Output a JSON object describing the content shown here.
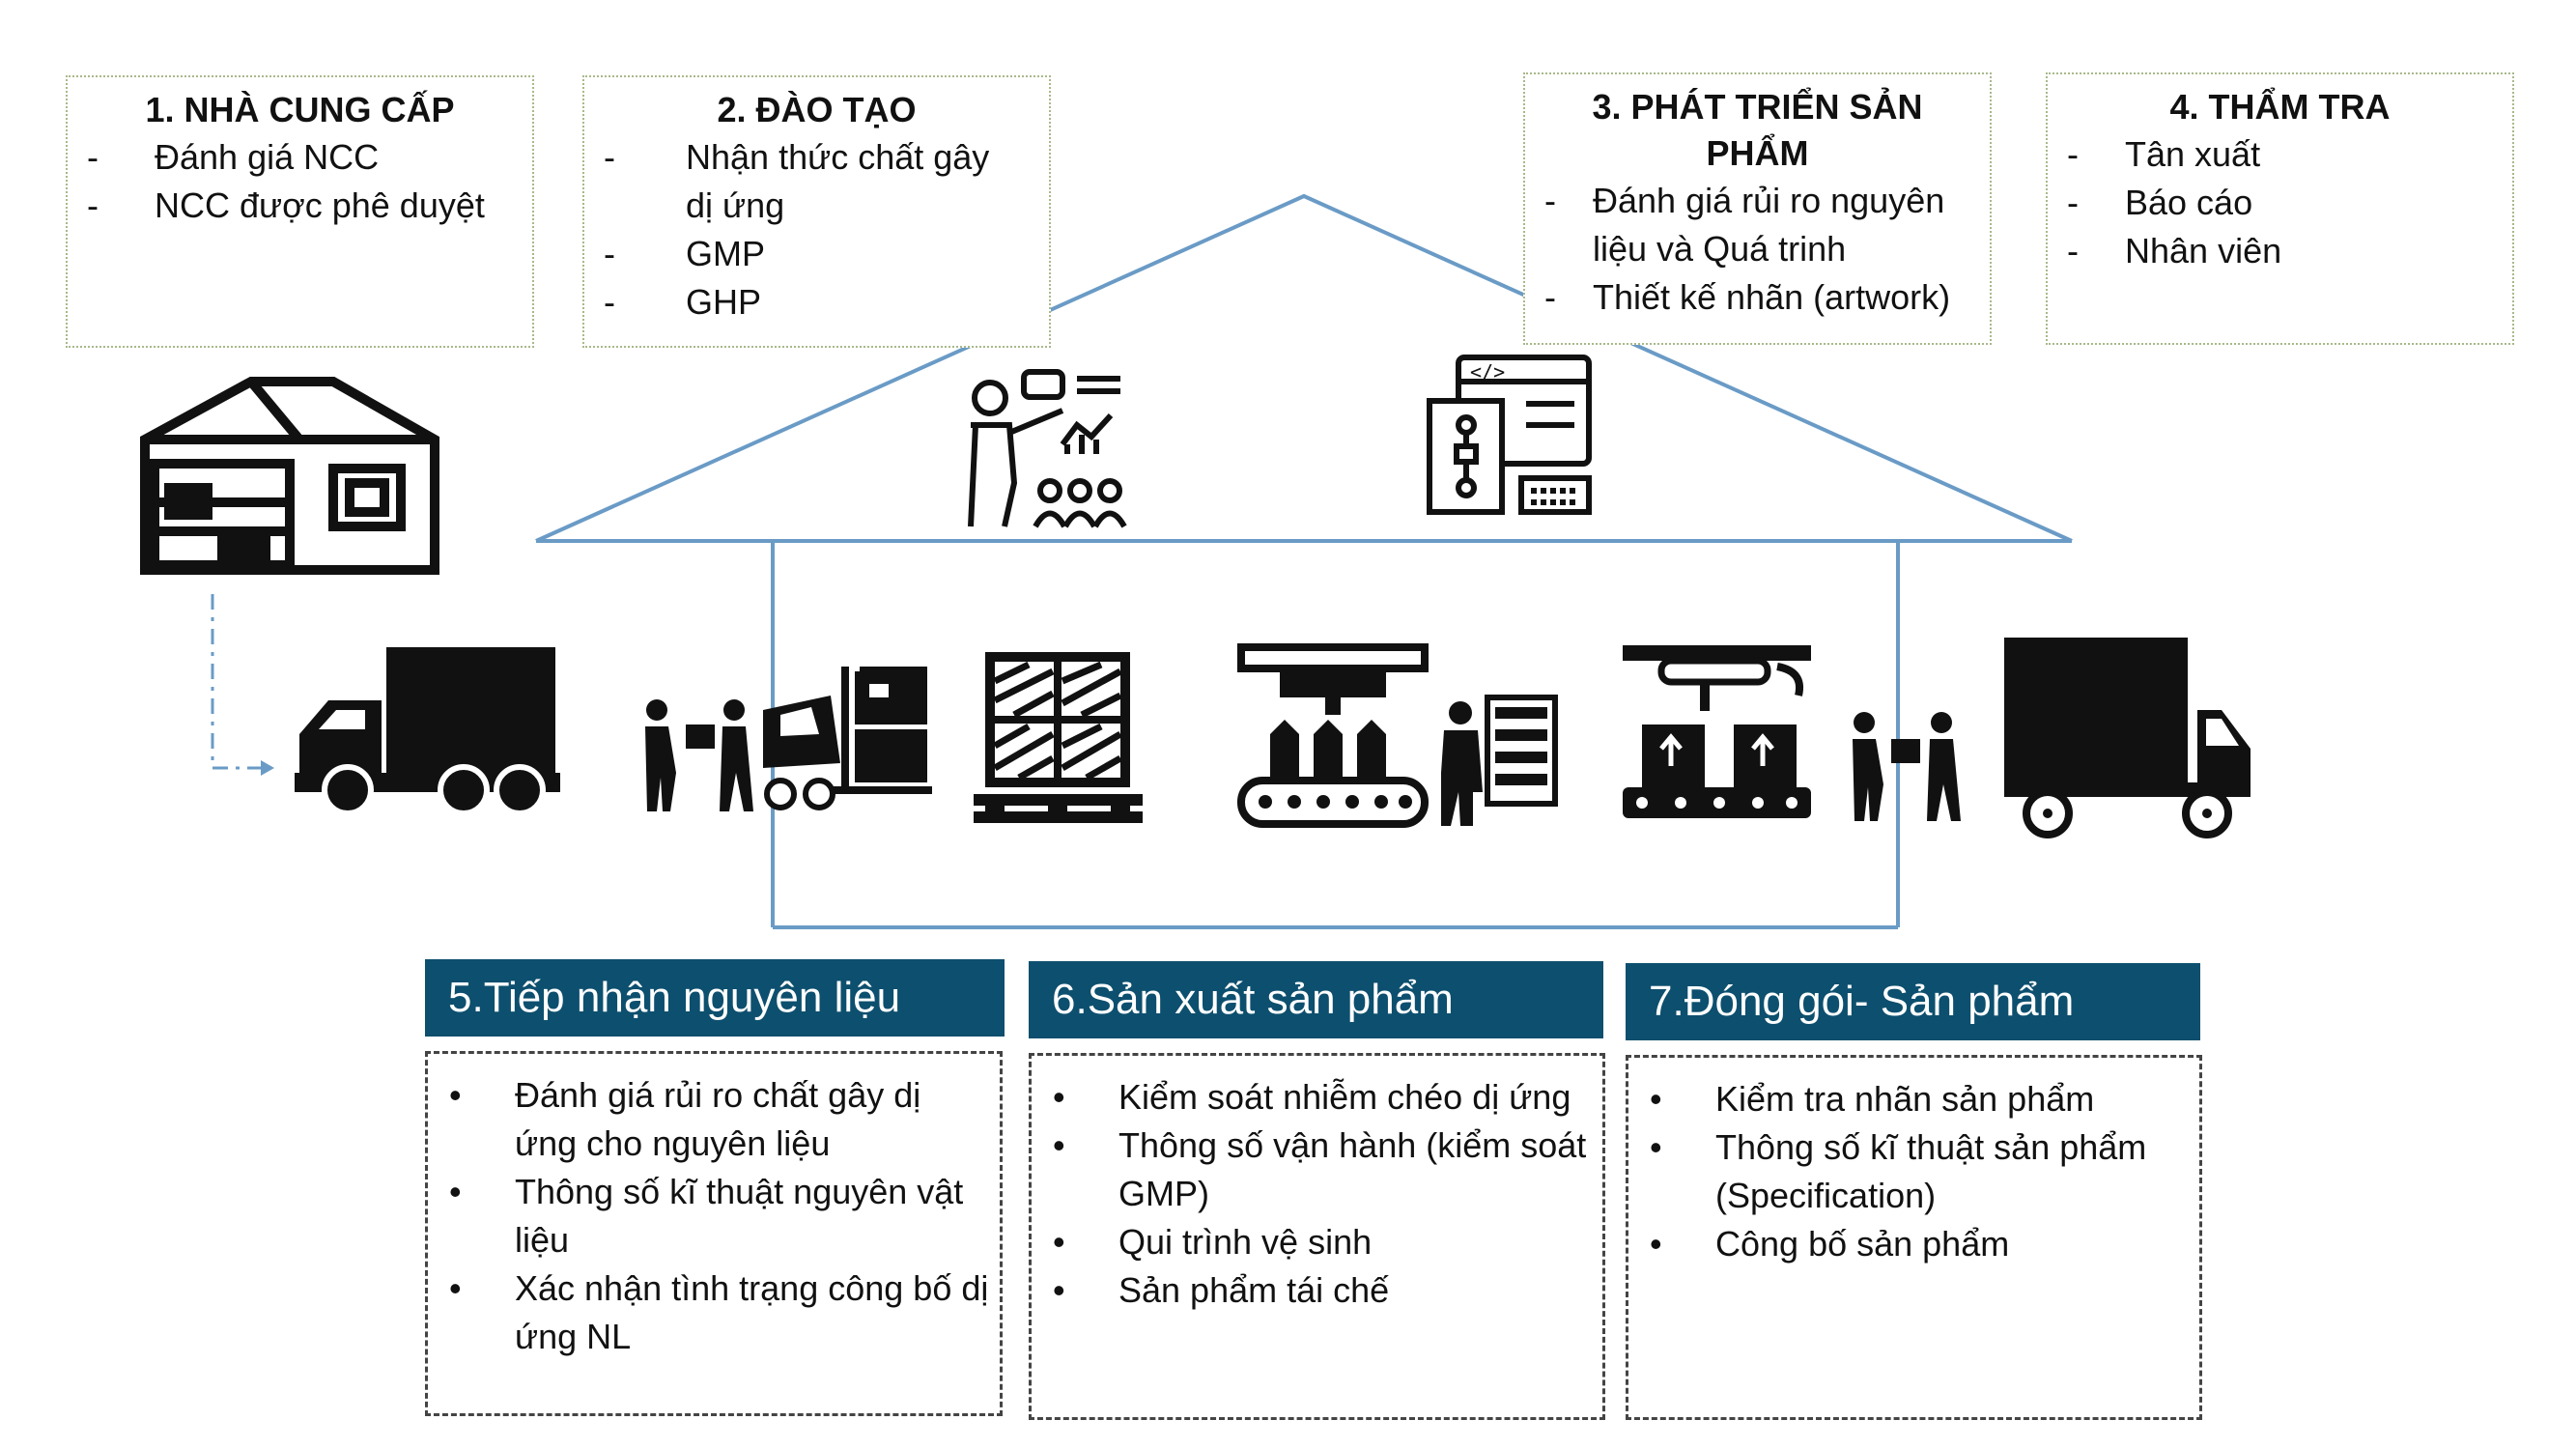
{
  "top_boxes": [
    {
      "title": "1. NHÀ CUNG CẤP",
      "items": [
        "Đánh giá NCC",
        "NCC được phê duyệt"
      ]
    },
    {
      "title": "2. ĐÀO TẠO",
      "items": [
        "Nhận thức chất gây dị ứng",
        "GMP",
        "GHP"
      ]
    },
    {
      "title": "3. PHÁT TRIỂN SẢN PHẨM",
      "items": [
        "Đánh giá rủi ro nguyên liệu và Quá trinh",
        "Thiết kế nhãn (artwork)"
      ]
    },
    {
      "title": "4. THẨM TRA",
      "items": [
        "Tân xuất",
        "Báo cáo",
        "Nhân viên"
      ]
    }
  ],
  "bottom_boxes": [
    {
      "title": "5.Tiếp nhận nguyên liệu",
      "items": [
        "Đánh giá rủi ro chất gây dị ứng cho nguyên liệu",
        "Thông số kĩ thuật nguyên vật liệu",
        "Xác nhận tình trạng công bố dị ứng NL"
      ]
    },
    {
      "title": "6.Sản xuất sản phẩm",
      "items": [
        "Kiểm soát nhiễm chéo dị ứng",
        "Thông số vận hành (kiểm soát GMP)",
        "Qui trình vệ sinh",
        "Sản phẩm tái chế"
      ]
    },
    {
      "title": "7.Đóng gói- Sản phẩm",
      "items": [
        "Kiểm tra nhãn sản phẩm",
        "Thông số kĩ thuật sản phẩm (Specification)",
        "Công bố sản phẩm"
      ]
    }
  ],
  "colors": {
    "header_bg": "#0d4f6e",
    "line": "#6a9bc6",
    "top_border": "#a9b88a"
  },
  "icons": [
    "warehouse-icon",
    "truck-icon",
    "training-icon",
    "design-icon",
    "checklist-icon",
    "handover-icon",
    "forklift-icon",
    "pallet-icon",
    "bottling-line-icon",
    "worker-shelf-icon",
    "packaging-robot-icon",
    "delivery-truck-icon"
  ]
}
